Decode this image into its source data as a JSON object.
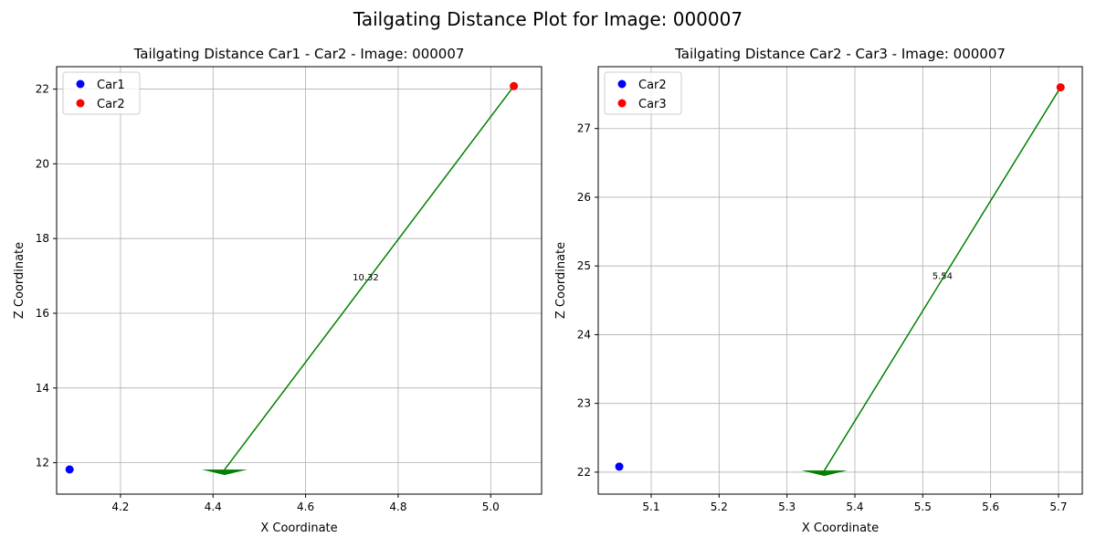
{
  "suptitle": "Tailgating Distance Plot for Image: 000007",
  "chart_data": [
    {
      "type": "scatter",
      "title": "Tailgating Distance Car1 - Car2 - Image: 000007",
      "xlabel": "X Coordinate",
      "ylabel": "Z Coordinate",
      "xlim": [
        4.062,
        5.11
      ],
      "ylim": [
        11.16,
        22.6
      ],
      "xticks": [
        4.2,
        4.4,
        4.6,
        4.8,
        5.0
      ],
      "xtick_labels": [
        "4.2",
        "4.4",
        "4.6",
        "4.8",
        "5.0"
      ],
      "yticks": [
        12,
        14,
        16,
        18,
        20,
        22
      ],
      "ytick_labels": [
        "12",
        "14",
        "16",
        "18",
        "20",
        "22"
      ],
      "grid": true,
      "legend_position": "upper-left",
      "series": [
        {
          "name": "Car1",
          "color": "#0000ff",
          "points": [
            {
              "x": 4.09,
              "z": 11.82
            }
          ]
        },
        {
          "name": "Car2",
          "color": "#ff0000",
          "points": [
            {
              "x": 5.05,
              "z": 22.08
            }
          ]
        }
      ],
      "arrow": {
        "color": "#008000",
        "from": {
          "x": 5.05,
          "z": 22.08
        },
        "to": {
          "x": 4.425,
          "z": 11.72
        }
      },
      "annotation": {
        "text": "10.32",
        "x": 4.73,
        "z": 16.95
      }
    },
    {
      "type": "scatter",
      "title": "Tailgating Distance Car2 - Car3 - Image: 000007",
      "xlabel": "X Coordinate",
      "ylabel": "Z Coordinate",
      "xlim": [
        5.022,
        5.735
      ],
      "ylim": [
        21.68,
        27.9
      ],
      "xticks": [
        5.1,
        5.2,
        5.3,
        5.4,
        5.5,
        5.6,
        5.7
      ],
      "xtick_labels": [
        "5.1",
        "5.2",
        "5.3",
        "5.4",
        "5.5",
        "5.6",
        "5.7"
      ],
      "yticks": [
        22,
        23,
        24,
        25,
        26,
        27
      ],
      "ytick_labels": [
        "22",
        "23",
        "24",
        "25",
        "26",
        "27"
      ],
      "grid": true,
      "legend_position": "upper-left",
      "series": [
        {
          "name": "Car2",
          "color": "#0000ff",
          "points": [
            {
              "x": 5.053,
              "z": 22.08
            }
          ]
        },
        {
          "name": "Car3",
          "color": "#ff0000",
          "points": [
            {
              "x": 5.703,
              "z": 27.6
            }
          ]
        }
      ],
      "arrow": {
        "color": "#008000",
        "from": {
          "x": 5.703,
          "z": 27.6
        },
        "to": {
          "x": 5.355,
          "z": 21.97
        }
      },
      "annotation": {
        "text": "5.54",
        "x": 5.529,
        "z": 24.85
      }
    }
  ]
}
